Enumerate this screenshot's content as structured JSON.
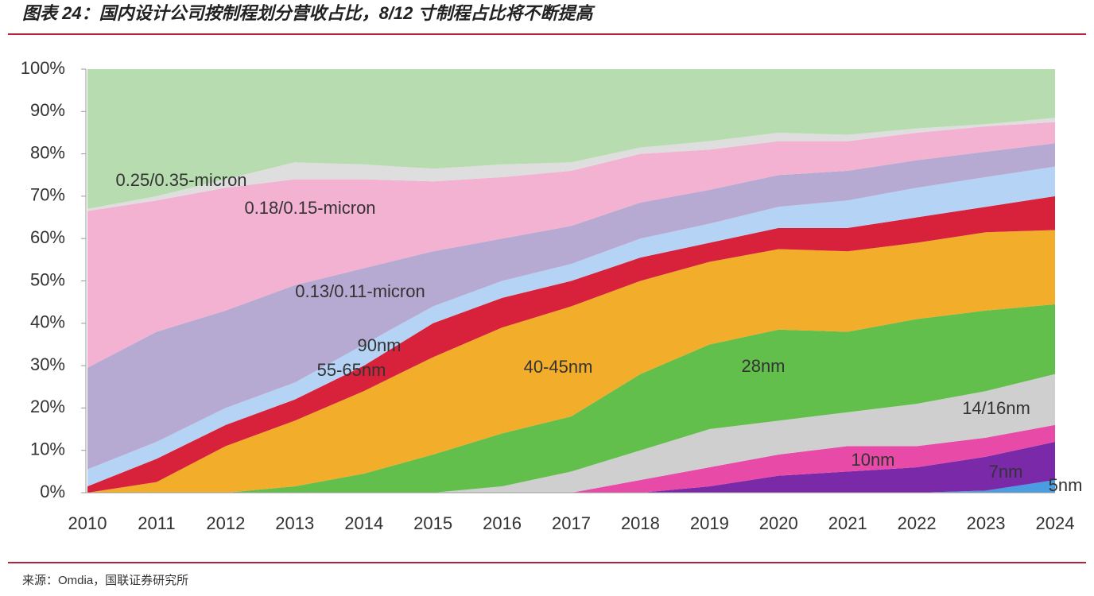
{
  "title": "图表 24：国内设计公司按制程划分营收占比，8/12 寸制程占比将不断提高",
  "source": "来源：Omdia，国联证券研究所",
  "chart_data": {
    "type": "stacked-area",
    "categories": [
      "2010",
      "2011",
      "2012",
      "2013",
      "2014",
      "2015",
      "2016",
      "2017",
      "2018",
      "2019",
      "2020",
      "2021",
      "2022",
      "2023",
      "2024"
    ],
    "ylim": [
      0,
      100
    ],
    "yticks": [
      {
        "value": 0,
        "label": "0%"
      },
      {
        "value": 10,
        "label": "10%"
      },
      {
        "value": 20,
        "label": "20%"
      },
      {
        "value": 30,
        "label": "30%"
      },
      {
        "value": 40,
        "label": "40%"
      },
      {
        "value": 50,
        "label": "50%"
      },
      {
        "value": 60,
        "label": "60%"
      },
      {
        "value": 70,
        "label": "70%"
      },
      {
        "value": 80,
        "label": "80%"
      },
      {
        "value": 90,
        "label": "90%"
      },
      {
        "value": 100,
        "label": "100%"
      }
    ],
    "series": [
      {
        "name": "5nm",
        "color": "#4a9de0",
        "values": [
          0,
          0,
          0,
          0,
          0,
          0,
          0,
          0,
          0,
          0,
          0,
          0,
          0,
          0.5,
          3
        ]
      },
      {
        "name": "7nm",
        "color": "#7a2aa8",
        "values": [
          0,
          0,
          0,
          0,
          0,
          0,
          0,
          0,
          0,
          1.5,
          4,
          5,
          6,
          8,
          9
        ]
      },
      {
        "name": "10nm",
        "color": "#e84aa8",
        "values": [
          0,
          0,
          0,
          0,
          0,
          0,
          0,
          0,
          3,
          4.5,
          5,
          6,
          5,
          4.5,
          4
        ]
      },
      {
        "name": "14/16nm",
        "color": "#cfcfcf",
        "values": [
          0,
          0,
          0,
          0,
          0,
          0,
          1.5,
          5,
          7,
          9,
          8,
          8,
          10,
          11,
          12
        ]
      },
      {
        "name": "28nm",
        "color": "#62bf4c",
        "values": [
          0,
          0,
          0,
          1.5,
          4.5,
          9,
          12.5,
          13,
          18,
          20,
          21.5,
          19,
          20,
          19,
          16.5
        ]
      },
      {
        "name": "40-45nm",
        "color": "#f2ad2a",
        "values": [
          0,
          2.5,
          11,
          15.5,
          19.5,
          23,
          25,
          26,
          22,
          19.5,
          19,
          19,
          18,
          18.5,
          17.5
        ]
      },
      {
        "name": "55-65nm",
        "color": "#d8213a",
        "values": [
          1.5,
          5.5,
          5,
          5,
          6,
          8,
          7,
          6,
          5.5,
          4.5,
          5,
          5.5,
          6,
          6,
          8
        ]
      },
      {
        "name": "90nm",
        "color": "#b5d3f4",
        "values": [
          4,
          4,
          4,
          4,
          5,
          4,
          4,
          4,
          4.5,
          4.5,
          5,
          6.5,
          7,
          7,
          7
        ]
      },
      {
        "name": "0.13/0.11-micron",
        "color": "#b7aad2",
        "values": [
          24,
          26,
          23,
          23,
          18,
          13,
          10,
          9,
          8.5,
          8,
          7.5,
          7,
          6.5,
          6,
          5.5
        ]
      },
      {
        "name": "0.18/0.15-micron",
        "color": "#f3b2d1",
        "values": [
          37,
          31,
          29,
          25,
          21,
          16.5,
          14.5,
          13,
          11.5,
          9.5,
          8,
          7,
          6.5,
          6,
          5
        ]
      },
      {
        "name": "0.25/0.35-micron",
        "color": "#dedede",
        "values": [
          0.5,
          1,
          2,
          4,
          3.5,
          3,
          3,
          2,
          1.5,
          2,
          2,
          1.5,
          1,
          0.5,
          1
        ]
      },
      {
        "color": "#b7dcb0",
        "values": [
          33,
          30,
          26,
          22,
          22.5,
          23.5,
          22.5,
          22,
          18.5,
          17,
          15,
          15.5,
          14,
          13,
          11.5
        ]
      }
    ]
  }
}
